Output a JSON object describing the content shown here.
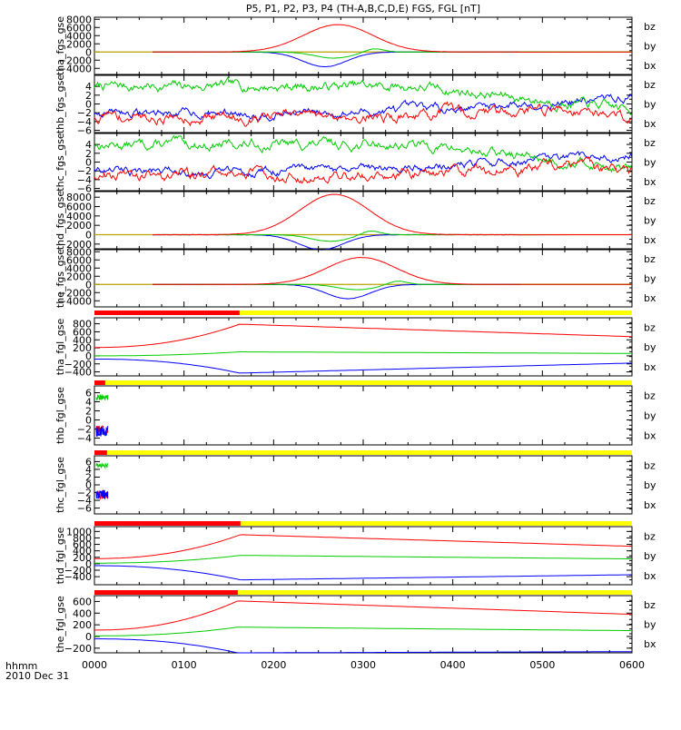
{
  "chart_data": {
    "type": "line",
    "title": "P5, P1, P2, P3, P4 (TH-A,B,C,D,E) FGS, FGL [nT]",
    "x_ticks": [
      "0000",
      "0100",
      "0200",
      "0300",
      "0400",
      "0500",
      "0600"
    ],
    "x_range_hours": [
      0,
      6
    ],
    "footer": {
      "label": "hhmm",
      "date": "2010 Dec 31"
    },
    "series_colors": {
      "bz": "#ff0000",
      "by": "#00cc00",
      "bx": "#0000ff"
    },
    "bar_colors": {
      "red": "#ff0000",
      "yellow": "#ffff00"
    },
    "panels": [
      {
        "id": "tha_fgs",
        "label": "tha_fgs_gse",
        "ymin": -5500,
        "ymax": 8500,
        "ticks": [
          8000,
          6000,
          4000,
          2000,
          0,
          -2000,
          -4000
        ],
        "tick_labels": [
          "8000",
          "6000",
          "4000",
          "2000",
          "0",
          "−2000",
          "−4000"
        ],
        "legend": [
          "bz",
          "by",
          "bx"
        ],
        "kind": "fgs_big",
        "peak_hour": 2.72,
        "peak_z": 6700,
        "min_x": -3600,
        "dy": 1500,
        "noise_x_start": 4.2
      },
      {
        "id": "thb_fgs",
        "label": "thb_fgs_gse",
        "ymin": -6.5,
        "ymax": 6.5,
        "ticks": [
          4,
          2,
          0,
          -2,
          -4,
          -6
        ],
        "tick_labels": [
          "4",
          "2",
          "0",
          "−2",
          "−4",
          "−6"
        ],
        "legend": [
          "bz",
          "by",
          "bx"
        ],
        "kind": "fgs_small",
        "seed": 7
      },
      {
        "id": "thc_fgs",
        "label": "thc_fgs_gse",
        "ymin": -6.5,
        "ymax": 6.5,
        "ticks": [
          4,
          2,
          0,
          -2,
          -4,
          -6
        ],
        "tick_labels": [
          "4",
          "2",
          "0",
          "−2",
          "−4",
          "−6"
        ],
        "legend": [
          "bz",
          "by",
          "bx"
        ],
        "kind": "fgs_small",
        "seed": 13
      },
      {
        "id": "thd_fgs",
        "label": "thd_fgs_gse",
        "ymin": -3000,
        "ymax": 9200,
        "ticks": [
          8000,
          6000,
          4000,
          2000,
          0,
          -2000
        ],
        "tick_labels": [
          "8000",
          "6000",
          "4000",
          "2000",
          "0",
          "−2000"
        ],
        "legend": [
          "bz",
          "by",
          "bx"
        ],
        "kind": "fgs_big",
        "peak_hour": 2.68,
        "peak_z": 8600,
        "min_x": -3200,
        "dy": 1400,
        "noise_x_start": 4.8
      },
      {
        "id": "the_fgs",
        "label": "the_fgs_gse",
        "ymin": -5500,
        "ymax": 8500,
        "ticks": [
          8000,
          6000,
          4000,
          2000,
          0,
          -2000,
          -4000
        ],
        "tick_labels": [
          "8000",
          "6000",
          "4000",
          "2000",
          "0",
          "−2000",
          "−4000"
        ],
        "legend": [
          "bz",
          "by",
          "bx"
        ],
        "kind": "fgs_big",
        "peak_hour": 2.98,
        "peak_z": 6600,
        "min_x": -3500,
        "dy": 1300,
        "noise_x_start": 4.9
      },
      {
        "id": "tha_fgl",
        "label": "tha_fgl_gse",
        "ymin": -500,
        "ymax": 950,
        "ticks": [
          800,
          600,
          400,
          200,
          0,
          -200,
          -400
        ],
        "tick_labels": [
          "800",
          "600",
          "400",
          "200",
          "0",
          "−200",
          "−400"
        ],
        "legend": [
          "bz",
          "by",
          "bx"
        ],
        "kind": "fgl",
        "end_hour": 1.62,
        "z": [
          210,
          790,
          480
        ],
        "y": [
          0,
          100,
          60
        ],
        "x": [
          -80,
          -430,
          -180
        ],
        "bar_red_end": 1.62
      },
      {
        "id": "thb_fgl",
        "label": "thb_fgl_gse",
        "ymin": -5.5,
        "ymax": 7.5,
        "ticks": [
          6,
          4,
          2,
          0,
          -2,
          -4
        ],
        "tick_labels": [
          "6",
          "4",
          "2",
          "0",
          "−2",
          "−4"
        ],
        "legend": [
          "bz",
          "by",
          "bx"
        ],
        "kind": "fgl_stub",
        "stub_end": 0.13,
        "bar_red_end": 0.12
      },
      {
        "id": "thc_fgl",
        "label": "thc_fgl_gse",
        "ymin": -7.5,
        "ymax": 7.5,
        "ticks": [
          6,
          4,
          2,
          0,
          -2,
          -4,
          -6
        ],
        "tick_labels": [
          "6",
          "4",
          "2",
          "0",
          "−2",
          "−4",
          "−6"
        ],
        "legend": [
          "bz",
          "by",
          "bx"
        ],
        "kind": "fgl_stub",
        "stub_end": 0.13,
        "bar_red_end": 0.14
      },
      {
        "id": "thd_fgl",
        "label": "thd_fgl_gse",
        "ymin": -650,
        "ymax": 1150,
        "ticks": [
          1000,
          800,
          600,
          400,
          200,
          0,
          -200,
          -400
        ],
        "tick_labels": [
          "1000",
          "800",
          "600",
          "400",
          "200",
          "0",
          "−200",
          "−400"
        ],
        "legend": [
          "bz",
          "by",
          "bx"
        ],
        "kind": "fgl",
        "end_hour": 1.63,
        "z": [
          160,
          900,
          540
        ],
        "y": [
          20,
          260,
          150
        ],
        "x": [
          -60,
          -500,
          -340
        ],
        "bar_red_end": 1.63
      },
      {
        "id": "the_fgl",
        "label": "the_fgl_gse",
        "ymin": -280,
        "ymax": 700,
        "ticks": [
          600,
          400,
          200,
          0,
          -200
        ],
        "tick_labels": [
          "600",
          "400",
          "200",
          "0",
          "−200"
        ],
        "legend": [
          "bz",
          "by",
          "bx"
        ],
        "kind": "fgl",
        "end_hour": 1.6,
        "z": [
          110,
          610,
          380
        ],
        "y": [
          10,
          160,
          100
        ],
        "x": [
          -40,
          -280,
          -260
        ],
        "bar_red_end": 1.6
      }
    ]
  }
}
